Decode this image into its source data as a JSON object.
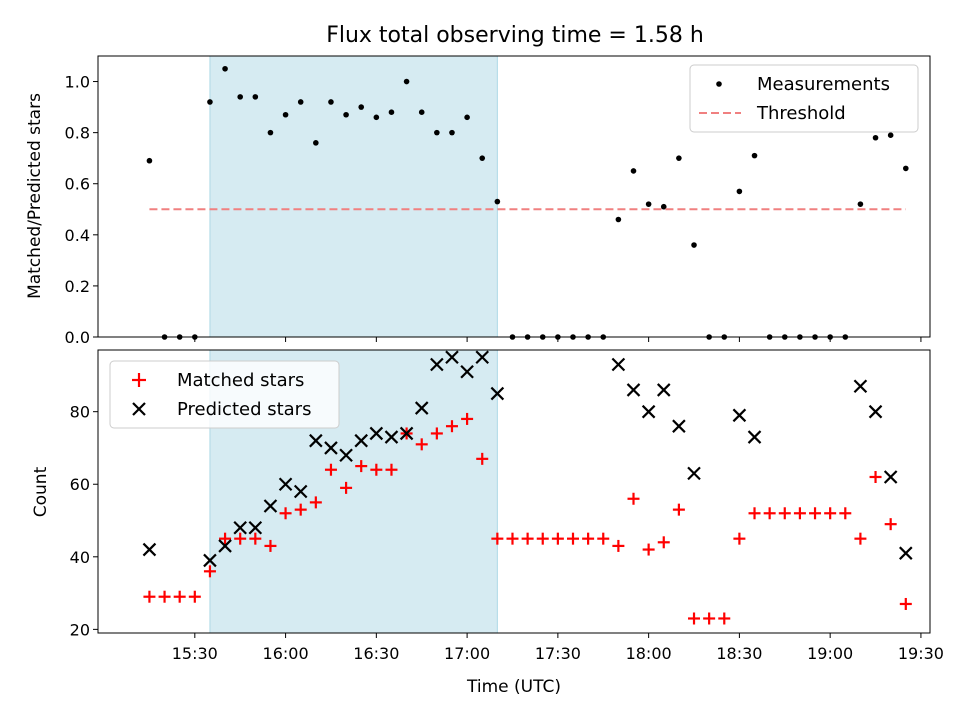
{
  "chart_data": [
    {
      "type": "scatter",
      "title": "Flux total observing time = 1.58 h",
      "xlabel": "",
      "ylabel": "Matched/Predicted stars",
      "ylim": [
        0,
        1.1
      ],
      "yticks": [
        "0.0",
        "0.2",
        "0.4",
        "0.6",
        "0.8",
        "1.0"
      ],
      "ytick_values": [
        0,
        0.2,
        0.4,
        0.6,
        0.8,
        1.0
      ],
      "highlight_band": {
        "start": "15:35",
        "end": "17:10",
        "color": "#add8e6"
      },
      "legend": {
        "placement": "top-right",
        "entries": [
          "Measurements",
          "Threshold"
        ]
      },
      "series": [
        {
          "name": "Measurements",
          "color": "#000000",
          "x": [
            "15:15",
            "15:20",
            "15:25",
            "15:30",
            "15:35",
            "15:40",
            "15:45",
            "15:50",
            "15:55",
            "16:00",
            "16:05",
            "16:10",
            "16:15",
            "16:20",
            "16:25",
            "16:30",
            "16:35",
            "16:40",
            "16:45",
            "16:50",
            "16:55",
            "17:00",
            "17:05",
            "17:10",
            "17:15",
            "17:20",
            "17:25",
            "17:30",
            "17:35",
            "17:40",
            "17:45",
            "17:50",
            "17:55",
            "18:00",
            "18:05",
            "18:10",
            "18:15",
            "18:20",
            "18:25",
            "18:30",
            "18:35",
            "18:40",
            "18:45",
            "18:50",
            "18:55",
            "19:00",
            "19:05",
            "19:10",
            "19:15",
            "19:20",
            "19:25"
          ],
          "values": [
            0.69,
            0,
            0,
            0,
            0.92,
            1.05,
            0.94,
            0.94,
            0.8,
            0.87,
            0.92,
            0.76,
            0.92,
            0.87,
            0.9,
            0.86,
            0.88,
            1.0,
            0.88,
            0.8,
            0.8,
            0.86,
            0.7,
            0.53,
            0,
            0,
            0,
            0,
            0,
            0,
            0,
            0.46,
            0.65,
            0.52,
            0.51,
            0.7,
            0.36,
            0,
            0,
            0.57,
            0.71,
            0,
            0,
            0,
            0,
            0,
            0,
            0.52,
            0.78,
            0.79,
            0.66
          ]
        },
        {
          "name": "Threshold",
          "color": "#f08080",
          "style": "dashed",
          "x": [
            "15:15",
            "19:25"
          ],
          "values": [
            0.5,
            0.5
          ]
        }
      ]
    },
    {
      "type": "scatter",
      "title": "",
      "xlabel": "Time (UTC)",
      "ylabel": "Count",
      "ylim": [
        19,
        97
      ],
      "yticks": [
        "20",
        "40",
        "60",
        "80"
      ],
      "ytick_values": [
        20,
        40,
        60,
        80
      ],
      "xticks": [
        "15:30",
        "16:00",
        "16:30",
        "17:00",
        "17:30",
        "18:00",
        "18:30",
        "19:00",
        "19:30"
      ],
      "xlim": [
        "14:58",
        "19:33"
      ],
      "highlight_band": {
        "start": "15:35",
        "end": "17:10",
        "color": "#add8e6"
      },
      "legend": {
        "placement": "top-left",
        "entries": [
          "Matched stars",
          "Predicted stars"
        ]
      },
      "series": [
        {
          "name": "Matched stars",
          "color": "#ff0000",
          "marker": "plus",
          "x": [
            "15:15",
            "15:20",
            "15:25",
            "15:30",
            "15:35",
            "15:40",
            "15:45",
            "15:50",
            "15:55",
            "16:00",
            "16:05",
            "16:10",
            "16:15",
            "16:20",
            "16:25",
            "16:30",
            "16:35",
            "16:40",
            "16:45",
            "16:50",
            "16:55",
            "17:00",
            "17:05",
            "17:10",
            "17:15",
            "17:20",
            "17:25",
            "17:30",
            "17:35",
            "17:40",
            "17:45",
            "17:50",
            "17:55",
            "18:00",
            "18:05",
            "18:10",
            "18:15",
            "18:20",
            "18:25",
            "18:30",
            "18:35",
            "18:40",
            "18:45",
            "18:50",
            "18:55",
            "19:00",
            "19:05",
            "19:10",
            "19:15",
            "19:20",
            "19:25"
          ],
          "values": [
            29,
            29,
            29,
            29,
            36,
            45,
            45,
            45,
            43,
            52,
            53,
            55,
            64,
            59,
            65,
            64,
            64,
            74,
            71,
            74,
            76,
            78,
            67,
            45,
            45,
            45,
            45,
            45,
            45,
            45,
            45,
            43,
            56,
            42,
            44,
            53,
            23,
            23,
            23,
            45,
            52,
            52,
            52,
            52,
            52,
            52,
            52,
            45,
            62,
            49,
            27
          ]
        },
        {
          "name": "Predicted stars",
          "color": "#000000",
          "marker": "x",
          "x": [
            "15:15",
            "15:35",
            "15:40",
            "15:45",
            "15:50",
            "15:55",
            "16:00",
            "16:05",
            "16:10",
            "16:15",
            "16:20",
            "16:25",
            "16:30",
            "16:35",
            "16:40",
            "16:45",
            "16:50",
            "16:55",
            "17:00",
            "17:05",
            "17:10",
            "17:50",
            "17:55",
            "18:00",
            "18:05",
            "18:10",
            "18:15",
            "18:30",
            "18:35",
            "19:10",
            "19:15",
            "19:20",
            "19:25"
          ],
          "values": [
            42,
            39,
            43,
            48,
            48,
            54,
            60,
            58,
            72,
            70,
            68,
            72,
            74,
            73,
            74,
            81,
            93,
            95,
            91,
            95,
            85,
            93,
            86,
            80,
            86,
            76,
            63,
            79,
            73,
            87,
            80,
            62,
            41
          ]
        }
      ]
    }
  ]
}
